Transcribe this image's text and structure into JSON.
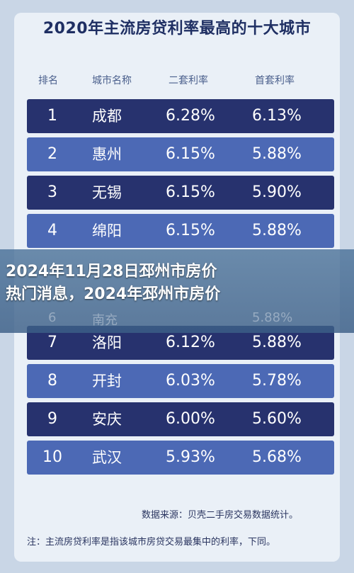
{
  "title": "2020年主流房贷利率最高的十大城市",
  "headers": {
    "rank": "排名",
    "city": "城市名称",
    "second": "二套利率",
    "first": "首套利率"
  },
  "rows_top": [
    {
      "rank": "1",
      "city": "成都",
      "second": "6.28%",
      "first": "6.13%"
    },
    {
      "rank": "2",
      "city": "惠州",
      "second": "6.15%",
      "first": "5.88%"
    },
    {
      "rank": "3",
      "city": "无锡",
      "second": "6.15%",
      "first": "5.90%"
    },
    {
      "rank": "4",
      "city": "绵阳",
      "second": "6.15%",
      "first": "5.88%"
    }
  ],
  "ghost_row": {
    "rank": "6",
    "city": "南充",
    "first": "5.88%"
  },
  "rows_bottom": [
    {
      "rank": "7",
      "city": "洛阳",
      "second": "6.12%",
      "first": "5.88%"
    },
    {
      "rank": "8",
      "city": "开封",
      "second": "6.03%",
      "first": "5.78%"
    },
    {
      "rank": "9",
      "city": "安庆",
      "second": "6.00%",
      "first": "5.60%"
    },
    {
      "rank": "10",
      "city": "武汉",
      "second": "5.93%",
      "first": "5.68%"
    }
  ],
  "headline": {
    "line1": "2024年11月28日邳州市房价",
    "line2": "热门消息，2024年邳州市房价"
  },
  "source": "数据来源：贝壳二手房交易数据统计。",
  "note": "注：主流房贷利率是指该城市房贷交易最集中的利率，下同。",
  "colors": {
    "row_dark": "#27326e",
    "row_light": "#4c69b5",
    "title": "#1f2f63"
  }
}
